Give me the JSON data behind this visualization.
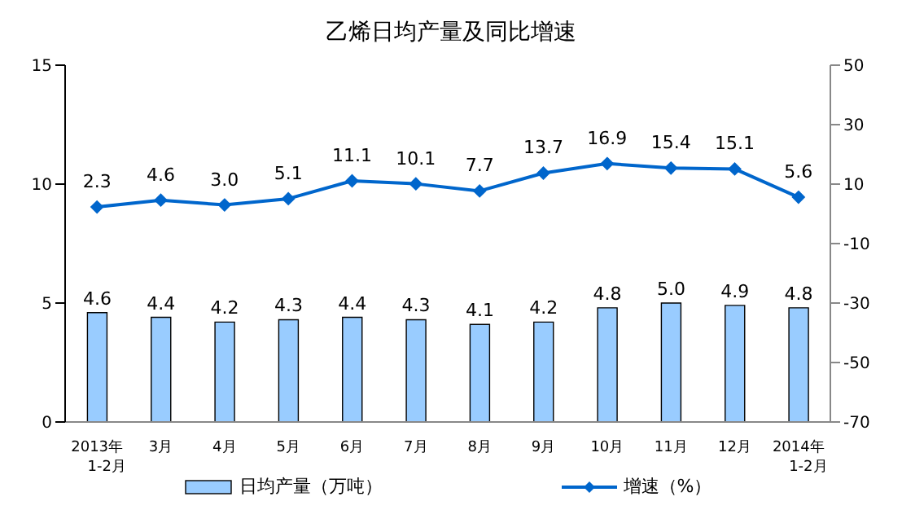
{
  "chart_data": {
    "type": "bar",
    "title": "乙烯日均产量及同比增速",
    "categories": [
      "2013年\n1-2月",
      "3月",
      "4月",
      "5月",
      "6月",
      "7月",
      "8月",
      "9月",
      "10月",
      "11月",
      "12月",
      "2014年\n1-2月"
    ],
    "series": [
      {
        "name": "日均产量（万吨）",
        "color": "#99ccff",
        "values": [
          4.6,
          4.4,
          4.2,
          4.3,
          4.4,
          4.3,
          4.1,
          4.2,
          4.8,
          5.0,
          4.9,
          4.8
        ],
        "value_labels": [
          "4.6",
          "4.4",
          "4.2",
          "4.3",
          "4.4",
          "4.3",
          "4.1",
          "4.2",
          "4.8",
          "5.0",
          "4.9",
          "4.8"
        ]
      },
      {
        "name": "增速（%）",
        "type": "line",
        "axis": "y2",
        "color": "#0066cc",
        "marker": "diamond",
        "values": [
          2.3,
          4.6,
          3.0,
          5.1,
          11.1,
          10.1,
          7.7,
          13.7,
          16.9,
          15.4,
          15.1,
          5.6
        ],
        "value_labels": [
          "2.3",
          "4.6",
          "3.0",
          "5.1",
          "11.1",
          "10.1",
          "7.7",
          "13.7",
          "16.9",
          "15.4",
          "15.1",
          "5.6"
        ]
      }
    ],
    "ylim": [
      0,
      15
    ],
    "yticks": [
      0,
      5,
      10,
      15
    ],
    "y2lim": [
      -70,
      50
    ],
    "y2ticks": [
      -70,
      -50,
      -30,
      -10,
      10,
      30,
      50
    ],
    "legend": "bottom"
  }
}
